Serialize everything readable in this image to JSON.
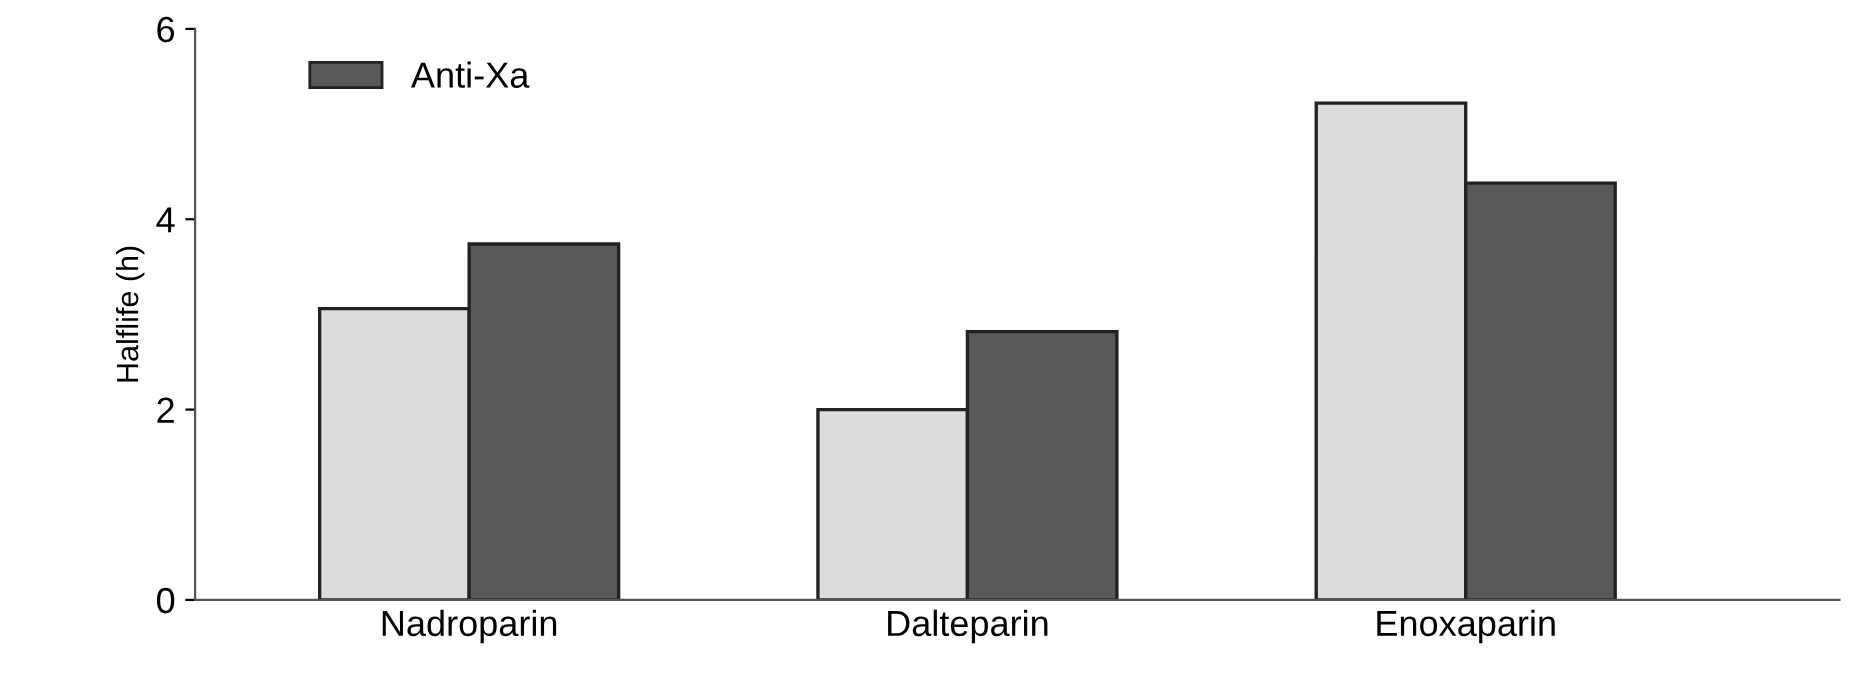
{
  "chart_data": {
    "type": "bar",
    "ylabel": "Halflife (h)",
    "categories": [
      "Nadroparin",
      "Dalteparin",
      "Enoxaparin"
    ],
    "series": [
      {
        "color": "#dcdcdc",
        "values": [
          3.06,
          2.0,
          5.22
        ]
      },
      {
        "name": "Anti-Xa",
        "color": "#595959",
        "values": [
          3.74,
          2.82,
          4.38
        ]
      }
    ],
    "ylim": [
      0,
      6
    ],
    "yticks": [
      0,
      2,
      4,
      6
    ],
    "grid": false,
    "legend": "top left"
  }
}
